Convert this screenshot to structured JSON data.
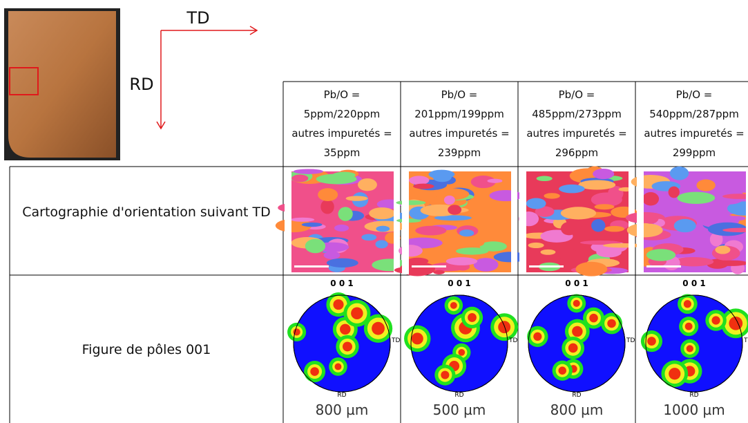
{
  "photo": {
    "td_label": "TD",
    "rd_label": "RD"
  },
  "table": {
    "columns": [
      {
        "lines": [
          "Pb/O =",
          "5ppm/220ppm",
          "autres impuretés =",
          "35ppm"
        ],
        "scale": "800 µm"
      },
      {
        "lines": [
          "Pb/O =",
          "201ppm/199ppm",
          "autres impuretés =",
          "239ppm"
        ],
        "scale": "500 µm"
      },
      {
        "lines": [
          "Pb/O =",
          "485ppm/273ppm",
          "autres impuretés =",
          "296ppm"
        ],
        "scale": "800 µm"
      },
      {
        "lines": [
          "Pb/O =",
          "540ppm/287ppm",
          "autres impuretés =",
          "299ppm"
        ],
        "scale": "1000 µm"
      }
    ],
    "rows": [
      "Cartographie d'orientation suivant TD",
      "Figure de pôles 001"
    ],
    "pole_top": "0 0 1",
    "pole_right": "TD",
    "pole_bottom": "RD"
  }
}
